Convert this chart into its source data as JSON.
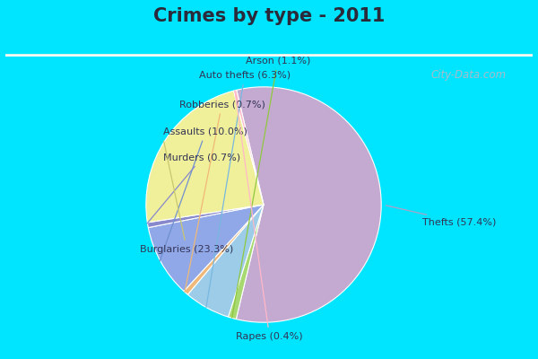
{
  "title": "Crimes by type - 2011",
  "labels": [
    "Thefts",
    "Burglaries",
    "Rapes",
    "Murders",
    "Assaults",
    "Robberies",
    "Auto thefts",
    "Arson"
  ],
  "values": [
    57.4,
    23.3,
    0.4,
    0.7,
    10.0,
    0.7,
    6.3,
    1.1
  ],
  "colors": [
    "#c4aad0",
    "#f0f09a",
    "#ffb8c8",
    "#8888cc",
    "#90a8e8",
    "#f0b878",
    "#9ccce8",
    "#a8d870"
  ],
  "label_texts": [
    "Thefts (57.4%)",
    "Burglaries (23.3%)",
    "Rapes (0.4%)",
    "Murders (0.7%)",
    "Assaults (10.0%)",
    "Robberies (0.7%)",
    "Auto thefts (6.3%)",
    "Arson (1.1%)"
  ],
  "line_colors": [
    "#b0a0c8",
    "#c8c870",
    "#ffb8c8",
    "#8888cc",
    "#7090d0",
    "#f0b878",
    "#78b8e0",
    "#90c840"
  ],
  "background_top": "#00e5ff",
  "title_fontsize": 15,
  "title_color": "#2a2a3a",
  "label_fontsize": 8,
  "label_color": "#333355"
}
